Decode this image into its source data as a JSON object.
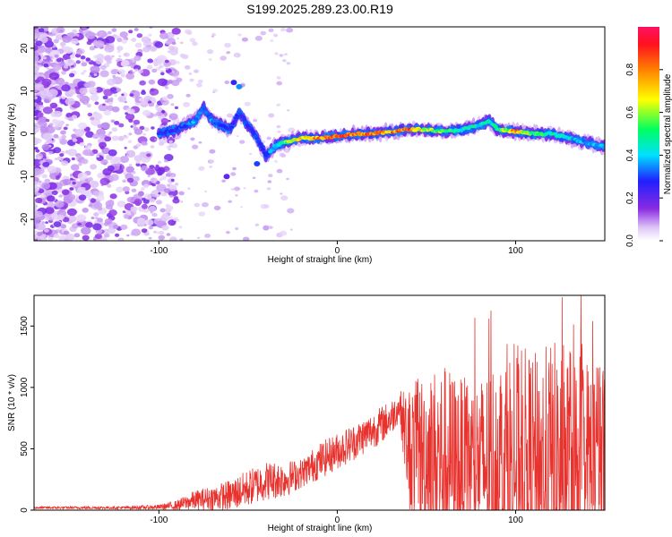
{
  "chart_data": [
    {
      "type": "heatmap",
      "title": "S199.2025.289.23.00.R19",
      "xlabel": "Height of straight line (km)",
      "ylabel": "Frequency (Hz)",
      "xlim": [
        -170,
        150
      ],
      "ylim": [
        -25,
        25
      ],
      "xticks": [
        -100,
        0,
        100
      ],
      "yticks": [
        -20,
        -10,
        0,
        10,
        20
      ],
      "colorbar": {
        "label": "Normalized spectral amplitude",
        "range": [
          0.0,
          1.0
        ],
        "ticks": [
          0.0,
          0.2,
          0.4,
          0.6,
          0.8
        ]
      },
      "ridge": {
        "x": [
          -100,
          -90,
          -80,
          -75,
          -70,
          -60,
          -55,
          -45,
          -40,
          -35,
          -30,
          -20,
          -10,
          0,
          10,
          20,
          30,
          40,
          50,
          60,
          70,
          80,
          85,
          90,
          100,
          110,
          120,
          130,
          140,
          150
        ],
        "freq": [
          0,
          1,
          3,
          6,
          3,
          1,
          5,
          -1,
          -5,
          -3,
          -2,
          -1,
          -1,
          -0.5,
          0,
          0,
          0.5,
          1,
          1,
          0.5,
          1,
          2,
          3,
          1,
          0.5,
          0,
          0,
          -1,
          -2,
          -3
        ],
        "amplitude": [
          0.3,
          0.3,
          0.4,
          0.35,
          0.4,
          0.3,
          0.3,
          0.3,
          0.35,
          0.4,
          0.6,
          0.8,
          0.85,
          0.9,
          0.9,
          0.9,
          0.85,
          0.9,
          0.7,
          0.6,
          0.5,
          0.5,
          0.5,
          0.5,
          0.85,
          0.6,
          0.5,
          0.45,
          0.4,
          0.4
        ]
      }
    },
    {
      "type": "line",
      "xlabel": "Height of straight line (km)",
      "ylabel": "SNR (10 * v/v)",
      "xlim": [
        -170,
        150
      ],
      "ylim": [
        0,
        1750
      ],
      "xticks": [
        -100,
        0,
        100
      ],
      "yticks": [
        0,
        500,
        1000,
        1500
      ],
      "color": "#e8322e",
      "envelope": {
        "x": [
          -170,
          -120,
          -100,
          -90,
          -80,
          -70,
          -60,
          -50,
          -40,
          -30,
          -20,
          -10,
          0,
          10,
          20,
          30,
          35,
          40,
          50,
          60,
          70,
          80,
          90,
          100,
          110,
          120,
          130,
          140,
          150
        ],
        "base": [
          20,
          20,
          25,
          40,
          80,
          100,
          120,
          180,
          240,
          250,
          300,
          400,
          480,
          560,
          650,
          750,
          850,
          500,
          450,
          400,
          380,
          380,
          380,
          380,
          380,
          380,
          380,
          380,
          400
        ],
        "amp": [
          10,
          12,
          20,
          40,
          80,
          100,
          130,
          150,
          160,
          150,
          120,
          150,
          150,
          150,
          150,
          150,
          120,
          500,
          700,
          800,
          700,
          700,
          900,
          1000,
          900,
          1000,
          1000,
          900,
          800
        ]
      }
    }
  ]
}
